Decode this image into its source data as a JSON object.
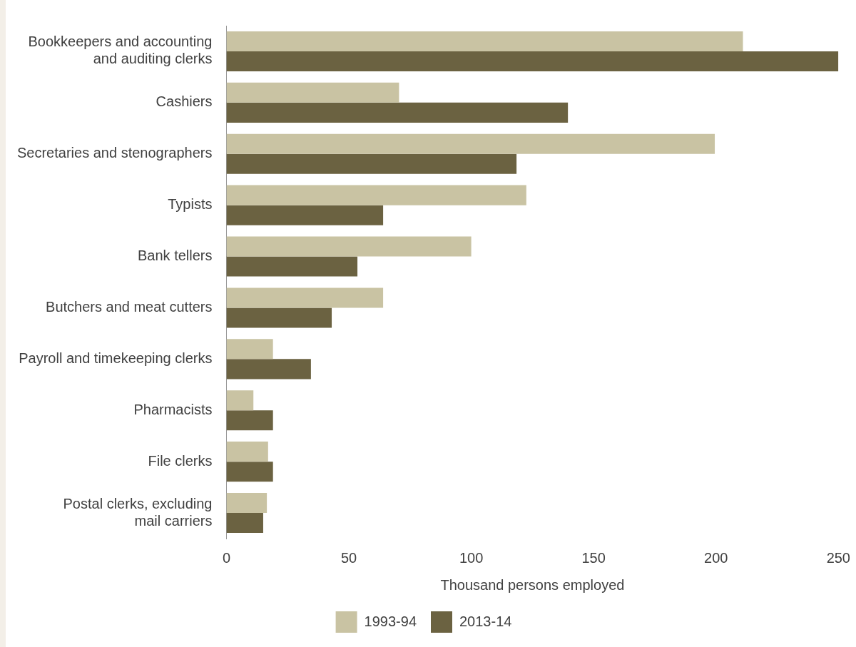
{
  "chart_data": {
    "type": "bar",
    "orientation": "horizontal",
    "xlabel": "Thousand persons employed",
    "categories": [
      "Bookkeepers and accounting\nand auditing clerks",
      "Cashiers",
      "Secretaries and stenographers",
      "Typists",
      "Bank tellers",
      "Butchers and meat cutters",
      "Payroll and timekeeping clerks",
      "Pharmacists",
      "File clerks",
      "Postal clerks, excluding\nmail carriers"
    ],
    "series": [
      {
        "name": "1993-94",
        "color": "#c9c3a3",
        "values": [
          211,
          70.5,
          199.5,
          122.5,
          100,
          64,
          19,
          11,
          17,
          16.5
        ]
      },
      {
        "name": "2013-14",
        "color": "#6b6241",
        "values": [
          250,
          139.5,
          118.5,
          64,
          53.5,
          43,
          34.5,
          19,
          19,
          15
        ]
      }
    ],
    "xlim": [
      0,
      250
    ],
    "xticks": [
      0,
      50,
      100,
      150,
      200,
      250
    ],
    "grid": false,
    "legend": "bottom"
  }
}
